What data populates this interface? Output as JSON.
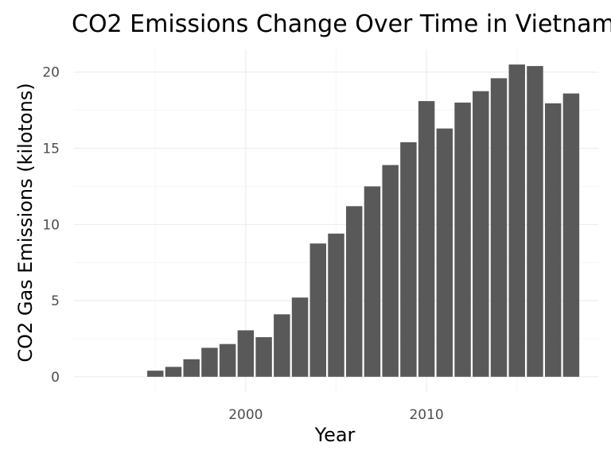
{
  "chart_data": {
    "type": "bar",
    "title": "CO2 Emissions Change Over Time in Vietnam",
    "xlabel": "Year",
    "ylabel": "CO2 Gas Emissions (kilotons)",
    "x": [
      1991,
      1992,
      1993,
      1994,
      1995,
      1996,
      1997,
      1998,
      1999,
      2000,
      2001,
      2002,
      2003,
      2004,
      2005,
      2006,
      2007,
      2008,
      2009,
      2010,
      2011,
      2012,
      2013,
      2014,
      2015,
      2016,
      2017,
      2018
    ],
    "values": [
      0,
      0,
      0,
      0,
      0.4,
      0.65,
      1.15,
      1.9,
      2.15,
      3.05,
      2.6,
      4.1,
      5.2,
      8.75,
      9.4,
      11.2,
      12.5,
      13.9,
      15.4,
      18.1,
      16.3,
      18.0,
      18.75,
      19.6,
      20.5,
      20.4,
      17.95,
      18.6
    ],
    "xlim": [
      1990.5,
      2019.5
    ],
    "ylim": [
      -1.0,
      21.5
    ],
    "x_ticks": [
      2000,
      2010
    ],
    "x_tick_labels": [
      "2000",
      "2010"
    ],
    "y_ticks": [
      0,
      5,
      10,
      15,
      20
    ],
    "y_tick_labels": [
      "0",
      "5",
      "10",
      "15",
      "20"
    ],
    "grid": true,
    "legend": "none",
    "bar_color": "#595959",
    "background": "#ffffff"
  }
}
